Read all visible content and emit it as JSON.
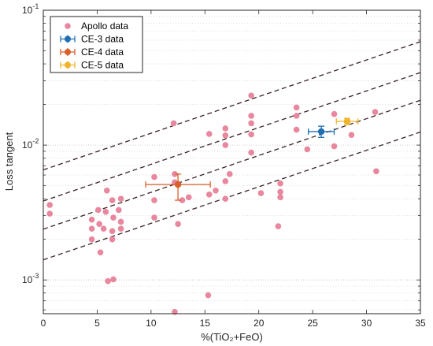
{
  "chart_data": {
    "type": "scatter",
    "xlabel": "%(TiO₂+FeO)",
    "ylabel": "Loss tangent",
    "xlim": [
      0,
      35
    ],
    "ylim": [
      0.000562,
      0.1
    ],
    "yscale": "log",
    "x_ticks": [
      0,
      5,
      10,
      15,
      20,
      25,
      30,
      35
    ],
    "x_tick_labels": [
      "0",
      "5",
      "10",
      "15",
      "20",
      "25",
      "30",
      "35"
    ],
    "y_major_ticks": [
      0.001,
      0.01,
      0.1
    ],
    "y_tick_labels": [
      {
        "base": "10",
        "exp": "-3"
      },
      {
        "base": "10",
        "exp": "-2"
      },
      {
        "base": "10",
        "exp": "-1"
      }
    ],
    "grid": "dotted-minor-y",
    "legend_position": "top-left",
    "series": [
      {
        "name": "Apollo data",
        "color": "#e8879e",
        "marker": "circle",
        "points": [
          [
            0.6,
            0.0036
          ],
          [
            0.6,
            0.0031
          ],
          [
            4.5,
            0.0028
          ],
          [
            4.5,
            0.0024
          ],
          [
            4.5,
            0.002
          ],
          [
            5.1,
            0.0033
          ],
          [
            5.2,
            0.0026
          ],
          [
            5.3,
            0.0016
          ],
          [
            5.6,
            0.0024
          ],
          [
            5.8,
            0.0032
          ],
          [
            5.9,
            0.0046
          ],
          [
            6.0,
            0.00098
          ],
          [
            6.5,
            0.00101
          ],
          [
            6.4,
            0.0039
          ],
          [
            6.5,
            0.0029
          ],
          [
            6.4,
            0.002
          ],
          [
            6.4,
            0.0023
          ],
          [
            7.0,
            0.0033
          ],
          [
            7.2,
            0.004
          ],
          [
            7.2,
            0.0027
          ],
          [
            7.2,
            0.0024
          ],
          [
            10.3,
            0.0058
          ],
          [
            10.3,
            0.0039
          ],
          [
            10.3,
            0.0029
          ],
          [
            12.1,
            0.0145
          ],
          [
            12.2,
            0.0061
          ],
          [
            12.2,
            0.0053
          ],
          [
            12.2,
            0.00058
          ],
          [
            12.5,
            0.0026
          ],
          [
            12.9,
            0.0039
          ],
          [
            13.5,
            0.0041
          ],
          [
            15.4,
            0.0121
          ],
          [
            15.4,
            0.0043
          ],
          [
            15.3,
            0.00077
          ],
          [
            16.0,
            0.0046
          ],
          [
            16.9,
            0.0133
          ],
          [
            16.9,
            0.0118
          ],
          [
            16.9,
            0.01
          ],
          [
            16.9,
            0.0054
          ],
          [
            16.9,
            0.004
          ],
          [
            17.3,
            0.0061
          ],
          [
            19.3,
            0.0233
          ],
          [
            19.3,
            0.0165
          ],
          [
            19.3,
            0.0145
          ],
          [
            19.3,
            0.012
          ],
          [
            19.3,
            0.0088
          ],
          [
            20.2,
            0.0044
          ],
          [
            21.8,
            0.0025
          ],
          [
            22.0,
            0.0052
          ],
          [
            22.0,
            0.0045
          ],
          [
            22.0,
            0.0041
          ],
          [
            23.5,
            0.019
          ],
          [
            23.5,
            0.0165
          ],
          [
            23.5,
            0.013
          ],
          [
            24.5,
            0.0093
          ],
          [
            27.0,
            0.017
          ],
          [
            27.0,
            0.0098
          ],
          [
            28.6,
            0.0119
          ],
          [
            30.8,
            0.0176
          ],
          [
            30.9,
            0.0064
          ]
        ]
      },
      {
        "name": "CE-3 data",
        "color": "#1f6fb4",
        "marker": "circle",
        "points": [
          [
            25.8,
            0.0126
          ]
        ],
        "xerr": [
          [
            1.2,
            1.2
          ]
        ],
        "yerr": [
          [
            0.0012,
            0.0012
          ]
        ]
      },
      {
        "name": "CE-4 data",
        "color": "#d95f2b",
        "marker": "circle",
        "points": [
          [
            12.5,
            0.0051
          ]
        ],
        "xerr": [
          [
            3.0,
            3.0
          ]
        ],
        "yerr": [
          [
            0.0012,
            0.001
          ]
        ]
      },
      {
        "name": "CE-5 data",
        "color": "#f0b428",
        "marker": "circle",
        "points": [
          [
            28.2,
            0.015
          ]
        ],
        "xerr": [
          [
            1.0,
            1.0
          ]
        ],
        "yerr": [
          [
            0.0008,
            0.0008
          ]
        ]
      }
    ],
    "trend_lines": [
      {
        "style": "dashed",
        "color": "#3b2222",
        "points": [
          [
            0,
            0.00655
          ],
          [
            35,
            0.0585
          ]
        ]
      },
      {
        "style": "dashed",
        "color": "#3b2222",
        "points": [
          [
            0,
            0.00385
          ],
          [
            35,
            0.0345
          ]
        ]
      },
      {
        "style": "dashed",
        "color": "#3b2222",
        "points": [
          [
            0,
            0.00238
          ],
          [
            35,
            0.0215
          ]
        ]
      },
      {
        "style": "dashed",
        "color": "#3b2222",
        "points": [
          [
            0,
            0.00141
          ],
          [
            35,
            0.0125
          ]
        ]
      }
    ]
  }
}
